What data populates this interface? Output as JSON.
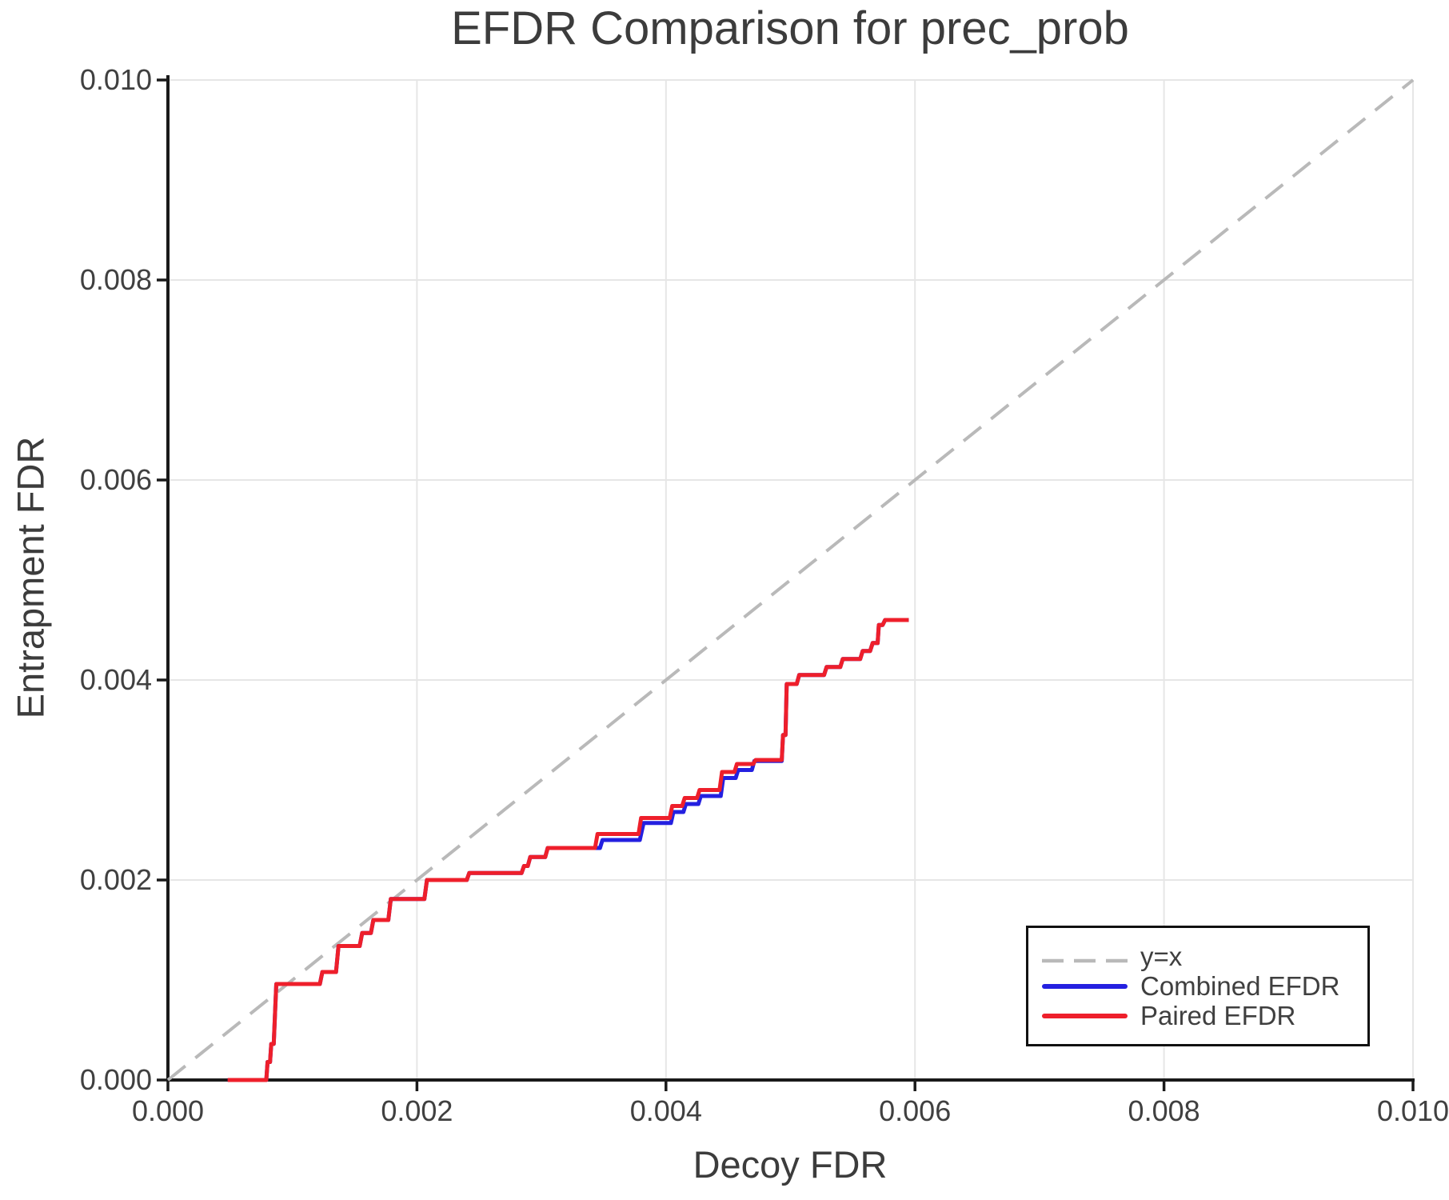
{
  "title": "EFDR Comparison for prec_prob",
  "colors": {
    "background": "#ffffff",
    "grid": "#e6e6e6",
    "spine": "#1a1a1a",
    "tick": "#1a1a1a",
    "text": "#3c3c3c",
    "tick_text": "#404040",
    "reference_gray": "#b9b9b9",
    "combined_blue": "#2420e0",
    "paired_red": "#ee1f2b"
  },
  "chart_data": {
    "type": "line",
    "title": "EFDR Comparison for prec_prob",
    "xlabel": "Decoy FDR",
    "ylabel": "Entrapment FDR",
    "xlim": [
      0.0,
      0.01
    ],
    "ylim": [
      0.0,
      0.01
    ],
    "grid": true,
    "legend_position": "lower right",
    "xticks": {
      "values": [
        0.0,
        0.002,
        0.004,
        0.006,
        0.008,
        0.01
      ],
      "labels": [
        "0.000",
        "0.002",
        "0.004",
        "0.006",
        "0.008",
        "0.010"
      ]
    },
    "yticks": {
      "values": [
        0.0,
        0.002,
        0.004,
        0.006,
        0.008,
        0.01
      ],
      "labels": [
        "0.000",
        "0.002",
        "0.004",
        "0.006",
        "0.008",
        "0.010"
      ]
    },
    "series": [
      {
        "name": "y=x",
        "style": "dashed",
        "color": "#b9b9b9",
        "width": 4,
        "dash": "28 16",
        "points": [
          [
            0.0,
            0.0
          ],
          [
            0.01,
            0.01
          ]
        ]
      },
      {
        "name": "Combined EFDR",
        "style": "solid",
        "color": "#2420e0",
        "width": 5,
        "points": [
          [
            0.00048,
            0
          ],
          [
            0.00079,
            0
          ],
          [
            0.0008,
            0.00018
          ],
          [
            0.00082,
            0.00018
          ],
          [
            0.00083,
            0.00036
          ],
          [
            0.00085,
            0.00036
          ],
          [
            0.00087,
            0.00096
          ],
          [
            0.00122,
            0.00096
          ],
          [
            0.00124,
            0.00108
          ],
          [
            0.00135,
            0.00108
          ],
          [
            0.00137,
            0.00134
          ],
          [
            0.00154,
            0.00134
          ],
          [
            0.00156,
            0.00147
          ],
          [
            0.00163,
            0.00147
          ],
          [
            0.00165,
            0.0016
          ],
          [
            0.00177,
            0.0016
          ],
          [
            0.00179,
            0.00181
          ],
          [
            0.00206,
            0.00181
          ],
          [
            0.00208,
            0.002
          ],
          [
            0.0024,
            0.002
          ],
          [
            0.00242,
            0.00207
          ],
          [
            0.00284,
            0.00207
          ],
          [
            0.00286,
            0.00214
          ],
          [
            0.00289,
            0.00214
          ],
          [
            0.00291,
            0.00223
          ],
          [
            0.00303,
            0.00223
          ],
          [
            0.00305,
            0.00232
          ],
          [
            0.00347,
            0.00232
          ],
          [
            0.00349,
            0.0024
          ],
          [
            0.00379,
            0.0024
          ],
          [
            0.00382,
            0.00257
          ],
          [
            0.00404,
            0.00257
          ],
          [
            0.00406,
            0.00268
          ],
          [
            0.00414,
            0.00268
          ],
          [
            0.00416,
            0.00276
          ],
          [
            0.00426,
            0.00276
          ],
          [
            0.00428,
            0.00284
          ],
          [
            0.00444,
            0.00284
          ],
          [
            0.00446,
            0.00302
          ],
          [
            0.00456,
            0.00302
          ],
          [
            0.00458,
            0.0031
          ],
          [
            0.00469,
            0.0031
          ],
          [
            0.00471,
            0.00319
          ],
          [
            0.00493,
            0.00319
          ],
          [
            0.00494,
            0.00345
          ],
          [
            0.00496,
            0.00345
          ],
          [
            0.00497,
            0.00396
          ],
          [
            0.00505,
            0.00396
          ],
          [
            0.00507,
            0.00405
          ],
          [
            0.00527,
            0.00405
          ],
          [
            0.00529,
            0.00413
          ],
          [
            0.0054,
            0.00413
          ],
          [
            0.00542,
            0.00421
          ],
          [
            0.00556,
            0.00421
          ],
          [
            0.00558,
            0.00429
          ],
          [
            0.00564,
            0.00429
          ],
          [
            0.00566,
            0.00437
          ],
          [
            0.0057,
            0.00437
          ],
          [
            0.00571,
            0.00455
          ],
          [
            0.00574,
            0.00455
          ],
          [
            0.00576,
            0.0046
          ],
          [
            0.00595,
            0.0046
          ]
        ]
      },
      {
        "name": "Paired EFDR",
        "style": "solid",
        "color": "#ee1f2b",
        "width": 5,
        "points": [
          [
            0.00048,
            0
          ],
          [
            0.00079,
            0
          ],
          [
            0.0008,
            0.00018
          ],
          [
            0.00082,
            0.00018
          ],
          [
            0.00083,
            0.00036
          ],
          [
            0.00085,
            0.00036
          ],
          [
            0.00087,
            0.00096
          ],
          [
            0.00122,
            0.00096
          ],
          [
            0.00124,
            0.00108
          ],
          [
            0.00135,
            0.00108
          ],
          [
            0.00137,
            0.00134
          ],
          [
            0.00154,
            0.00134
          ],
          [
            0.00156,
            0.00147
          ],
          [
            0.00163,
            0.00147
          ],
          [
            0.00165,
            0.0016
          ],
          [
            0.00177,
            0.0016
          ],
          [
            0.00179,
            0.00181
          ],
          [
            0.00206,
            0.00181
          ],
          [
            0.00208,
            0.002
          ],
          [
            0.0024,
            0.002
          ],
          [
            0.00242,
            0.00207
          ],
          [
            0.00284,
            0.00207
          ],
          [
            0.00286,
            0.00214
          ],
          [
            0.00289,
            0.00214
          ],
          [
            0.00291,
            0.00223
          ],
          [
            0.00303,
            0.00223
          ],
          [
            0.00305,
            0.00232
          ],
          [
            0.00343,
            0.00232
          ],
          [
            0.00345,
            0.00246
          ],
          [
            0.00378,
            0.00246
          ],
          [
            0.0038,
            0.00262
          ],
          [
            0.00403,
            0.00262
          ],
          [
            0.00405,
            0.00274
          ],
          [
            0.00413,
            0.00274
          ],
          [
            0.00415,
            0.00282
          ],
          [
            0.00425,
            0.00282
          ],
          [
            0.00427,
            0.0029
          ],
          [
            0.00443,
            0.0029
          ],
          [
            0.00445,
            0.00308
          ],
          [
            0.00455,
            0.00308
          ],
          [
            0.00457,
            0.00316
          ],
          [
            0.0047,
            0.00316
          ],
          [
            0.00472,
            0.0032
          ],
          [
            0.00493,
            0.0032
          ],
          [
            0.00494,
            0.00345
          ],
          [
            0.00496,
            0.00345
          ],
          [
            0.00497,
            0.00396
          ],
          [
            0.00505,
            0.00396
          ],
          [
            0.00507,
            0.00405
          ],
          [
            0.00527,
            0.00405
          ],
          [
            0.00529,
            0.00413
          ],
          [
            0.0054,
            0.00413
          ],
          [
            0.00542,
            0.00421
          ],
          [
            0.00556,
            0.00421
          ],
          [
            0.00558,
            0.00429
          ],
          [
            0.00564,
            0.00429
          ],
          [
            0.00566,
            0.00437
          ],
          [
            0.0057,
            0.00437
          ],
          [
            0.00571,
            0.00455
          ],
          [
            0.00574,
            0.00455
          ],
          [
            0.00576,
            0.0046
          ],
          [
            0.00595,
            0.0046
          ]
        ]
      }
    ]
  },
  "legend": {
    "entries": [
      {
        "label": "y=x"
      },
      {
        "label": "Combined EFDR"
      },
      {
        "label": "Paired EFDR"
      }
    ]
  }
}
